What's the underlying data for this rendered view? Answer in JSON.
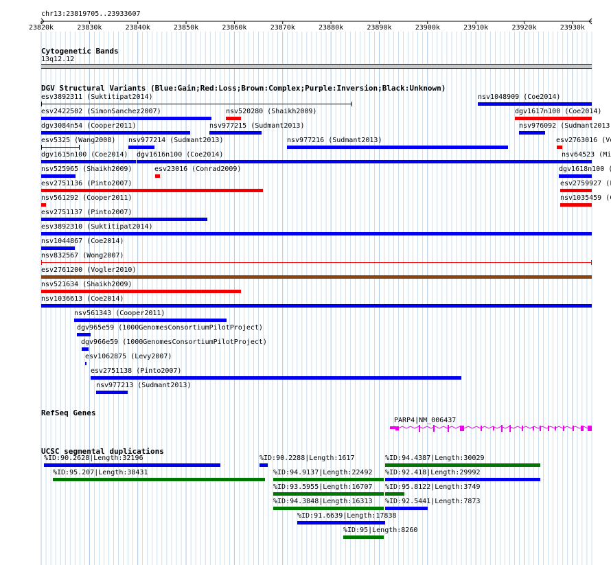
{
  "colors": {
    "gain": "#0000ee",
    "loss": "#ee0000",
    "complex": "#8b4513",
    "inversion": "#800080",
    "unknown": "#000000",
    "refseq": "#ee00ee",
    "dup_blue": "#0000ee",
    "dup_green": "#007700",
    "grid": "#a7c8e4"
  },
  "ruler": {
    "coord_label": "chr13:23819705..23933607",
    "ticks": [
      "23820k",
      "23830k",
      "23840k",
      "23850k",
      "23860k",
      "23870k",
      "23880k",
      "23890k",
      "23900k",
      "23910k",
      "23920k",
      "23930k"
    ]
  },
  "cytoband": {
    "title": "Cytogenetic Bands",
    "band": "13q12.12"
  },
  "dgv": {
    "title": "DGV Structural Variants (Blue:Gain;Red:Loss;Brown:Complex;Purple:Inversion;Black:Unknown)",
    "features": [
      {
        "label": "esv3892311 (Suktitipat2014)",
        "type": "unknown"
      },
      {
        "label": "nsv1048909 (Coe2014)",
        "type": "gain"
      },
      {
        "label": "esv2422502 (SimonSanchez2007)",
        "type": "gain"
      },
      {
        "label": "nsv520280 (Shaikh2009)",
        "type": "loss"
      },
      {
        "label": "dgv1617n100 (Coe2014)",
        "type": "loss"
      },
      {
        "label": "dgv3084n54 (Cooper2011)",
        "type": "gain"
      },
      {
        "label": "nsv977215 (Sudmant2013)",
        "type": "gain"
      },
      {
        "label": "nsv976092 (Sudmant2013)",
        "type": "gain"
      },
      {
        "label": "esv5325 (Wang2008)",
        "type": "unknown"
      },
      {
        "label": "nsv977214 (Sudmant2013)",
        "type": "gain"
      },
      {
        "label": "nsv977216 (Sudmant2013)",
        "type": "gain"
      },
      {
        "label": "esv2763016 (Vo",
        "type": "loss"
      },
      {
        "label": "dgv1615n100 (Coe2014)",
        "type": "gain"
      },
      {
        "label": "dgv1616n100 (Coe2014)",
        "type": "gain"
      },
      {
        "label": "nsv64523 (Mi",
        "type": "gain"
      },
      {
        "label": "nsv525965 (Shaikh2009)",
        "type": "gain"
      },
      {
        "label": "esv23016 (Conrad2009)",
        "type": "loss"
      },
      {
        "label": "dgv1618n100 (",
        "type": "gain"
      },
      {
        "label": "esv2751136 (Pinto2007)",
        "type": "loss"
      },
      {
        "label": "esv2759927 (F",
        "type": "loss"
      },
      {
        "label": "nsv561292 (Cooper2011)",
        "type": "loss"
      },
      {
        "label": "nsv1035459 (C",
        "type": "loss"
      },
      {
        "label": "esv2751137 (Pinto2007)",
        "type": "gain"
      },
      {
        "label": "esv3892310 (Suktitipat2014)",
        "type": "gain"
      },
      {
        "label": "nsv1044867 (Coe2014)",
        "type": "gain"
      },
      {
        "label": "nsv832567 (Wong2007)",
        "type": "loss"
      },
      {
        "label": "esv2761200 (Vogler2010)",
        "type": "complex"
      },
      {
        "label": "nsv521634 (Shaikh2009)",
        "type": "loss"
      },
      {
        "label": "nsv1036613 (Coe2014)",
        "type": "gain"
      },
      {
        "label": "nsv561343 (Cooper2011)",
        "type": "gain"
      },
      {
        "label": "dgv965e59 (1000GenomesConsortiumPilotProject)",
        "type": "gain"
      },
      {
        "label": "dgv966e59 (1000GenomesConsortiumPilotProject)",
        "type": "gain"
      },
      {
        "label": "esv1062875 (Levy2007)",
        "type": "gain"
      },
      {
        "label": "esv2751138 (Pinto2007)",
        "type": "gain"
      },
      {
        "label": "nsv977213 (Sudmant2013)",
        "type": "gain"
      }
    ]
  },
  "refseq": {
    "title": "RefSeq Genes",
    "gene_label": "PARP4|NM_006437"
  },
  "segdups": {
    "title": "UCSC segmental duplications",
    "items": [
      {
        "label": "%ID:90.2628|Length:32196",
        "color": "blue"
      },
      {
        "label": "%ID:90.2288|Length:1617",
        "color": "blue"
      },
      {
        "label": "%ID:94.4387|Length:30029",
        "color": "green"
      },
      {
        "label": "%ID:95.207|Length:38431",
        "color": "green"
      },
      {
        "label": "%ID:94.9137|Length:22492",
        "color": "green"
      },
      {
        "label": "%ID:92.418|Length:29992",
        "color": "blue"
      },
      {
        "label": "%ID:93.5955|Length:16707",
        "color": "green"
      },
      {
        "label": "%ID:95.8122|Length:3749",
        "color": "green"
      },
      {
        "label": "%ID:94.3848|Length:16313",
        "color": "green"
      },
      {
        "label": "%ID:92.5441|Length:7873",
        "color": "blue"
      },
      {
        "label": "%ID:91.6639|Length:17838",
        "color": "blue"
      },
      {
        "label": "%ID:95|Length:8260",
        "color": "green"
      }
    ]
  }
}
